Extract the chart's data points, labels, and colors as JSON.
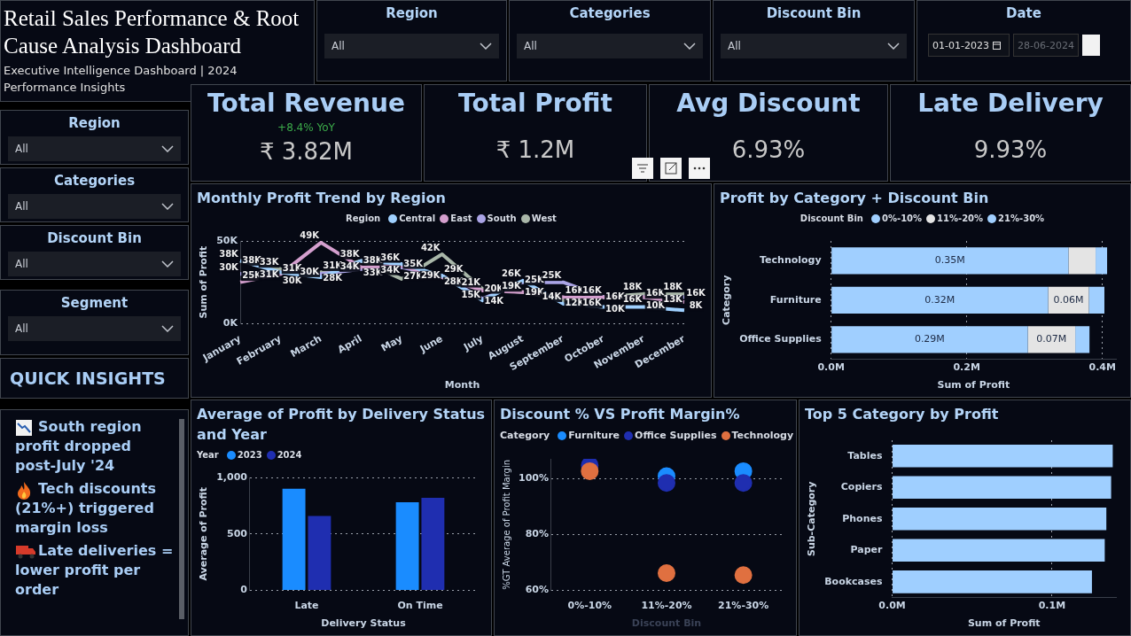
{
  "chart_data": [
    {
      "type": "other",
      "title": "Retail Sales Performance & Root Cause Analysis Dashboard",
      "subtitle": "Executive Intelligence Dashboard | 2024 Performance Insights"
    },
    {
      "type": "other",
      "title": "Region",
      "annotations": [
        "All"
      ]
    },
    {
      "type": "other",
      "title": "Categories",
      "annotations": [
        "All"
      ]
    },
    {
      "type": "other",
      "title": "Discount Bin",
      "annotations": [
        "All"
      ]
    },
    {
      "type": "other",
      "title": "Date",
      "annotations": [
        "01-01-2023",
        "28-06-2024"
      ]
    },
    {
      "type": "other",
      "title": "Total Revenue",
      "annotations": [
        "+8.4% YoY",
        "₹ 3.82M"
      ]
    },
    {
      "type": "other",
      "title": "Total Profit",
      "annotations": [
        "₹ 1.2M"
      ]
    },
    {
      "type": "other",
      "title": "Avg Discount",
      "annotations": [
        "6.93%"
      ]
    },
    {
      "type": "other",
      "title": "Late Delivery",
      "annotations": [
        "9.93%"
      ]
    },
    {
      "type": "other",
      "title": "Region",
      "annotations": [
        "All"
      ]
    },
    {
      "type": "other",
      "title": "Categories",
      "annotations": [
        "All"
      ]
    },
    {
      "type": "other",
      "title": "Discount Bin",
      "annotations": [
        "All"
      ]
    },
    {
      "type": "other",
      "title": "Segment",
      "annotations": [
        "All"
      ]
    },
    {
      "type": "line",
      "title": "Monthly Profit Trend by Region",
      "xlabel": "Month",
      "ylabel": "Sum of Profit",
      "legend_title": "Region",
      "legend": "top",
      "grid": "y",
      "categories": [
        "January",
        "February",
        "March",
        "April",
        "May",
        "June",
        "July",
        "August",
        "September",
        "October",
        "November",
        "December"
      ],
      "ylim": [
        0,
        50000
      ],
      "yticks": [
        {
          "value": 0,
          "label": "0K"
        },
        {
          "value": 50000,
          "label": "50K"
        }
      ],
      "series": [
        {
          "name": "Central",
          "color": "#9fd0ff",
          "values": [
            38000,
            31000,
            28000,
            38000,
            36000,
            29000,
            14000,
            26000,
            12000,
            10000,
            10000,
            8000
          ],
          "value_labels": [
            "38K",
            "31K",
            "28K",
            "38K",
            "36K",
            "29K",
            "14K",
            "26K",
            "12K",
            "10K",
            "10K",
            "8K"
          ]
        },
        {
          "name": "East",
          "color": "#d49fce",
          "values": [
            25000,
            30000,
            49000,
            34000,
            35000,
            28000,
            20000,
            19000,
            16000,
            16000,
            16000,
            13000
          ],
          "value_labels": [
            "25K",
            "30K",
            "49K",
            "34K",
            "35K",
            "28K",
            "20K",
            "19K",
            "16K",
            "16K",
            "16K",
            "13K"
          ]
        },
        {
          "name": "South",
          "color": "#aaa4e6",
          "values": [
            30000,
            31000,
            30000,
            33000,
            34000,
            29000,
            15000,
            25000,
            25000,
            16000,
            16000,
            16000
          ],
          "value_labels": [
            "30K",
            "31K",
            "30K",
            "33K",
            "34K",
            "29K",
            "15K",
            "25K",
            "25K",
            "16K",
            "16K",
            "16K"
          ]
        },
        {
          "name": "West",
          "color": "#a9b7a9",
          "values": [
            38000,
            33000,
            31000,
            38000,
            27000,
            42000,
            21000,
            19000,
            14000,
            16000,
            18000,
            18000
          ],
          "value_labels": [
            "38K",
            "33K",
            "31K",
            "38K",
            "27K",
            "42K",
            "21K",
            "19K",
            "14K",
            "16K",
            "18K",
            "18K"
          ]
        }
      ]
    },
    {
      "type": "bar",
      "title": "Profit by Category + Discount Bin",
      "orientation": "horizontal",
      "stacked": true,
      "xlabel": "Sum of Profit",
      "ylabel": "Category",
      "legend_title": "Discount Bin",
      "legend": "top",
      "grid": "x",
      "categories": [
        "Technology",
        "Furniture",
        "Office Supplies"
      ],
      "xlim": [
        0,
        420000
      ],
      "xticks": [
        {
          "value": 0,
          "label": "0.0M"
        },
        {
          "value": 200000,
          "label": "0.2M"
        },
        {
          "value": 400000,
          "label": "0.4M"
        }
      ],
      "series": [
        {
          "name": "0%-10%",
          "color": "#a0cfff",
          "values": [
            350000,
            320000,
            290000
          ],
          "value_labels": [
            "0.35M",
            "0.32M",
            "0.29M"
          ]
        },
        {
          "name": "11%-20%",
          "color": "#e4e4e4",
          "values": [
            40000,
            60000,
            70000
          ],
          "value_labels": [
            null,
            "0.06M",
            "0.07M"
          ]
        },
        {
          "name": "21%-30%",
          "color": "#a0cfff",
          "values": [
            17000,
            23000,
            21000
          ]
        }
      ]
    },
    {
      "type": "other",
      "title": "QUICK INSIGHTS",
      "annotations": [
        "South region profit dropped post-July '24",
        "Tech discounts (21%+) triggered margin loss",
        "Late deliveries = lower profit per order"
      ]
    },
    {
      "type": "bar",
      "title": "Average of Profit by Delivery Status and Year",
      "xlabel": "Delivery Status",
      "ylabel": "Average of Profit",
      "legend_title": "Year",
      "legend": "top left",
      "grid": "y",
      "categories": [
        "Late",
        "On Time"
      ],
      "ylim": [
        0,
        1000
      ],
      "yticks": [
        0,
        500,
        {
          "value": 1000,
          "label": "1,000"
        }
      ],
      "series": [
        {
          "name": "2023",
          "color": "#1a8cff",
          "values": [
            900,
            780
          ]
        },
        {
          "name": "2024",
          "color": "#1f2eb0",
          "values": [
            660,
            820
          ]
        }
      ]
    },
    {
      "type": "scatter",
      "title": "Discount % VS Profit Margin%",
      "xlabel": "Discount Bin",
      "ylabel": "%GT Average of Profit Margin",
      "legend_title": "Category",
      "legend": "top left",
      "grid": "y",
      "marker": "circle",
      "categories": [
        "0%-10%",
        "11%-20%",
        "21%-30%"
      ],
      "ylim": [
        60,
        107
      ],
      "yticks": [
        {
          "value": 60,
          "label": "60%"
        },
        {
          "value": 80,
          "label": "80%"
        },
        {
          "value": 100,
          "label": "100%"
        }
      ],
      "series": [
        {
          "name": "Furniture",
          "color": "#1a8cff",
          "values": [
            null,
            100.8,
            102.6
          ]
        },
        {
          "name": "Office Supplies",
          "color": "#1f2eb0",
          "values": [
            104.7,
            98.4,
            98.4
          ]
        },
        {
          "name": "Technology",
          "color": "#e07040",
          "values": [
            102.6,
            66.2,
            65.5
          ]
        }
      ]
    },
    {
      "type": "bar",
      "title": "Top 5 Category by Profit",
      "orientation": "horizontal",
      "xlabel": "Sum of Profit",
      "ylabel": "Sub-Category",
      "grid": "x",
      "categories": [
        "Tables",
        "Copiers",
        "Phones",
        "Paper",
        "Bookcases"
      ],
      "xlim": [
        0,
        140000
      ],
      "xticks": [
        {
          "value": 0,
          "label": "0.0M"
        },
        {
          "value": 100000,
          "label": "0.1M"
        }
      ],
      "values": [
        138000,
        137000,
        134000,
        133000,
        125000
      ],
      "color": "#9fcfff"
    }
  ]
}
